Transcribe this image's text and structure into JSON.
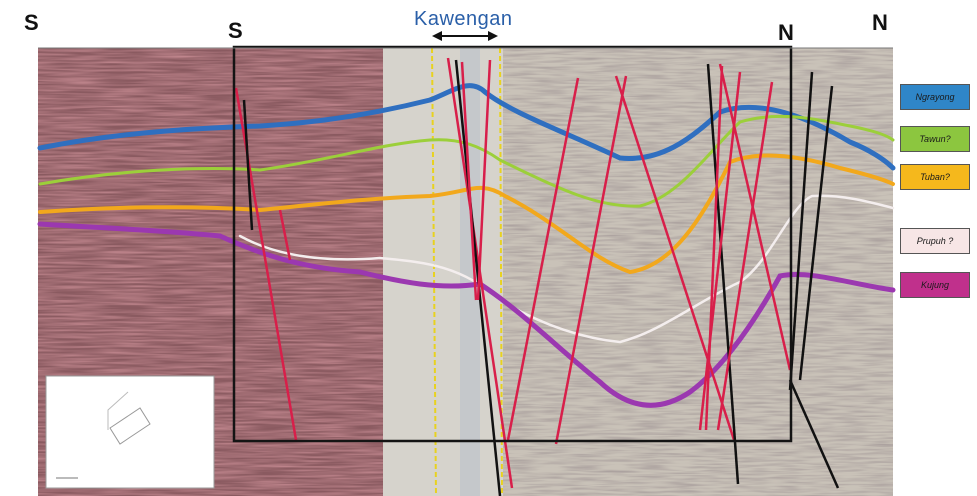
{
  "title": "Kawengan",
  "corners": {
    "left_outer": "S",
    "left_inner": "S",
    "right_inner": "N",
    "right_outer": "N"
  },
  "legend": [
    {
      "label": "Ngrayong",
      "color": "#2f86c8"
    },
    {
      "label": "Tawun?",
      "color": "#8cc63f"
    },
    {
      "label": "Tuban?",
      "color": "#f5b81c"
    },
    {
      "label": "Prupuh ?",
      "color": "#f7e6e6"
    },
    {
      "label": "Kujung",
      "color": "#c0308c"
    }
  ],
  "colors": {
    "fault": "#d81f4a",
    "fault_black": "#111111",
    "ngrayong": "#2f6fc0",
    "tawun": "#9ccf3a",
    "tuban": "#f2a81c",
    "prupuh": "#f4eeee",
    "kujung": "#9b38b0"
  }
}
